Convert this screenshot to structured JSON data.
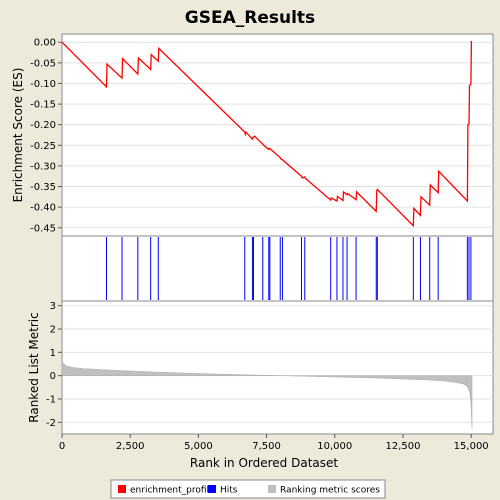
{
  "chart_data": {
    "type": "line",
    "title": "GSEA_Results",
    "xlabel": "Rank in Ordered Dataset",
    "xlim": [
      0,
      15800
    ],
    "x_ticks": [
      "0",
      "2,500",
      "5,000",
      "7,500",
      "10,000",
      "12,500",
      "15,000"
    ],
    "x_tick_values": [
      0,
      2500,
      5000,
      7500,
      10000,
      12500,
      15000
    ],
    "es_panel": {
      "ylabel": "Enrichment Score (ES)",
      "ylim": [
        -0.47,
        0.02
      ],
      "y_ticks": [
        "0.00",
        "-0.05",
        "-0.10",
        "-0.15",
        "-0.20",
        "-0.25",
        "-0.30",
        "-0.35",
        "-0.40",
        "-0.45"
      ],
      "y_tick_values": [
        0,
        -0.05,
        -0.1,
        -0.15,
        -0.2,
        -0.25,
        -0.3,
        -0.35,
        -0.4,
        -0.45
      ],
      "series": [
        {
          "name": "enrichment_profile",
          "color": "#ff0000",
          "x": [
            0,
            1630,
            1650,
            2200,
            2220,
            2780,
            2800,
            3250,
            3270,
            3530,
            3550,
            6700,
            6720,
            6740,
            6980,
            7000,
            7060,
            7360,
            7380,
            7580,
            7600,
            7620,
            8000,
            8020,
            8080,
            8780,
            8800,
            8900,
            8920,
            9850,
            9870,
            10080,
            10100,
            10300,
            10320,
            10450,
            10470,
            10780,
            10800,
            11520,
            11540,
            11560,
            12880,
            12900,
            13140,
            13160,
            13480,
            13500,
            13790,
            13810,
            14860,
            14880,
            14920,
            14940,
            14990,
            15010
          ],
          "y": [
            0.0,
            -0.108,
            -0.053,
            -0.087,
            -0.04,
            -0.077,
            -0.038,
            -0.066,
            -0.03,
            -0.046,
            -0.015,
            -0.218,
            -0.223,
            -0.218,
            -0.235,
            -0.231,
            -0.228,
            -0.247,
            -0.249,
            -0.26,
            -0.257,
            -0.258,
            -0.28,
            -0.283,
            -0.285,
            -0.325,
            -0.329,
            -0.327,
            -0.33,
            -0.383,
            -0.378,
            -0.385,
            -0.374,
            -0.384,
            -0.363,
            -0.37,
            -0.367,
            -0.382,
            -0.363,
            -0.41,
            -0.36,
            -0.357,
            -0.445,
            -0.403,
            -0.42,
            -0.375,
            -0.395,
            -0.346,
            -0.365,
            -0.313,
            -0.385,
            -0.2,
            -0.199,
            -0.105,
            -0.102,
            0.003
          ]
        }
      ]
    },
    "hits_panel": {
      "series": [
        {
          "name": "Hits",
          "color": "#0000ff",
          "x": [
            1630,
            2200,
            2780,
            3250,
            3530,
            6700,
            6980,
            7020,
            7360,
            7580,
            7620,
            8000,
            8080,
            8780,
            8900,
            9850,
            10080,
            10300,
            10450,
            10780,
            11520,
            11560,
            12880,
            13140,
            13480,
            13790,
            14860,
            14920,
            14990
          ]
        }
      ]
    },
    "rank_panel": {
      "ylabel": "Ranked List Metric",
      "ylim": [
        -2.5,
        3.2
      ],
      "y_ticks": [
        "3",
        "2",
        "1",
        "0",
        "-1",
        "-2"
      ],
      "y_tick_values": [
        3,
        2,
        1,
        0,
        -1,
        -2
      ],
      "series": [
        {
          "name": "Ranking metric scores",
          "color": "#c0c0c0",
          "x": [
            0,
            150,
            400,
            800,
            1500,
            2500,
            3500,
            5000,
            7000,
            8500,
            9500,
            10500,
            11500,
            12500,
            13500,
            14000,
            14400,
            14700,
            14850,
            14950,
            15000,
            15030
          ],
          "y": [
            0.58,
            0.42,
            0.35,
            0.3,
            0.25,
            0.2,
            0.15,
            0.09,
            0.03,
            -0.01,
            -0.04,
            -0.07,
            -0.1,
            -0.14,
            -0.19,
            -0.23,
            -0.28,
            -0.35,
            -0.45,
            -0.7,
            -1.4,
            -2.25
          ]
        }
      ]
    },
    "legend": {
      "placement": "bottom",
      "items": [
        {
          "label": "enrichment_profile",
          "color": "#ff0000"
        },
        {
          "label": "Hits",
          "color": "#0000ff"
        },
        {
          "label": "Ranking metric scores",
          "color": "#c0c0c0"
        }
      ]
    }
  }
}
